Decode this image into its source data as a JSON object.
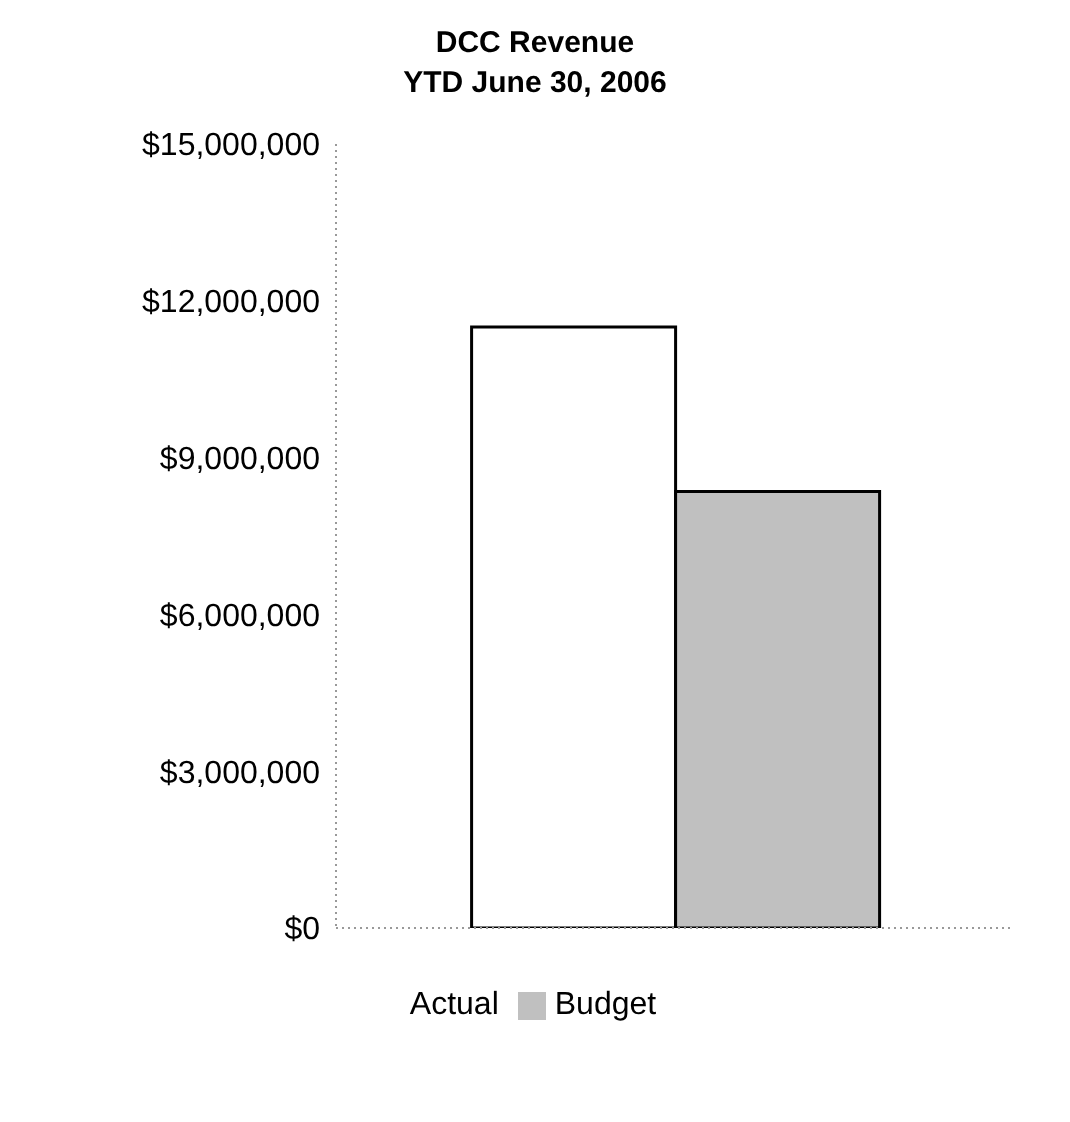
{
  "chart_data": {
    "type": "bar",
    "title": "DCC Revenue",
    "subtitle": "YTD June 30, 2006",
    "categories": [
      null
    ],
    "series": [
      {
        "name": "Actual",
        "color": "#ffffff",
        "values": [
          11500000
        ]
      },
      {
        "name": "Budget",
        "color": "#c0c0c0",
        "values": [
          8350000
        ]
      }
    ],
    "ylim": [
      0,
      15000000
    ],
    "yticks": [
      {
        "value": 0,
        "label": "$0"
      },
      {
        "value": 3000000,
        "label": "$3,000,000"
      },
      {
        "value": 6000000,
        "label": "$6,000,000"
      },
      {
        "value": 9000000,
        "label": "$9,000,000"
      },
      {
        "value": 12000000,
        "label": "$12,000,000"
      },
      {
        "value": 15000000,
        "label": "$15,000,000"
      }
    ],
    "legend": "bottom"
  }
}
